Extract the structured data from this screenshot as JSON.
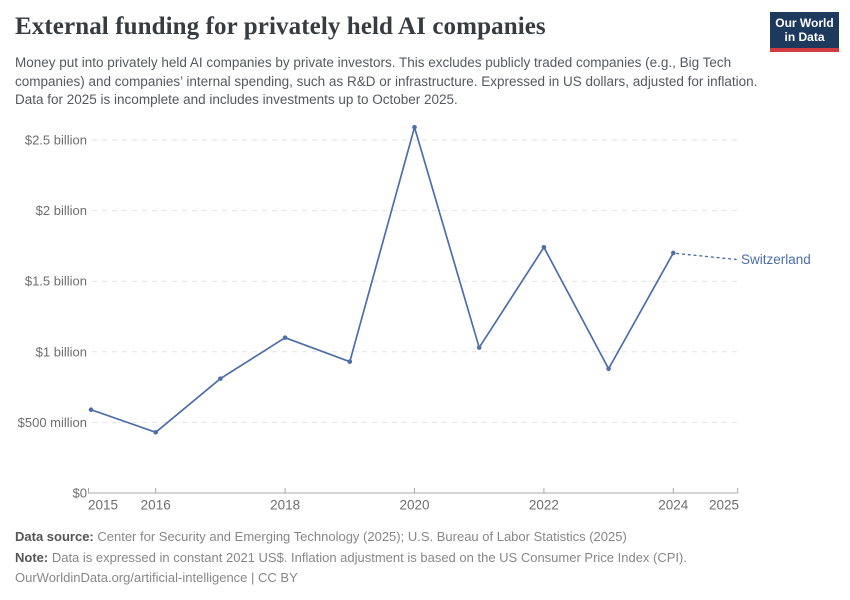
{
  "header": {
    "title": "External funding for privately held AI companies",
    "subtitle": "Money put into privately held AI companies by private investors. This excludes publicly traded companies (e.g., Big Tech companies) and companies’ internal spending, such as R&D or infrastructure. Expressed in US dollars, adjusted for inflation. Data for 2025 is incomplete and includes investments up to October 2025.",
    "logo": {
      "line1": "Our World",
      "line2": "in Data",
      "bg_color": "#1d3a5e",
      "accent_color": "#d23b3f"
    }
  },
  "chart_data": {
    "type": "line",
    "title": "External funding for privately held AI companies",
    "unit": "US dollars (constant 2021 US$), billions",
    "x": [
      2015,
      2016,
      2017,
      2018,
      2019,
      2020,
      2021,
      2022,
      2023,
      2024
    ],
    "series": [
      {
        "name": "Switzerland",
        "color": "#4c6ea9",
        "values_billion_usd": [
          0.59,
          0.43,
          0.81,
          1.1,
          0.93,
          2.59,
          1.03,
          1.74,
          0.88,
          1.7
        ]
      }
    ],
    "y_ticks": [
      {
        "value": 0,
        "label": "$0"
      },
      {
        "value": 0.5,
        "label": "$500 million"
      },
      {
        "value": 1,
        "label": "$1 billion"
      },
      {
        "value": 1.5,
        "label": "$1.5 billion"
      },
      {
        "value": 2,
        "label": "$2 billion"
      },
      {
        "value": 2.5,
        "label": "$2.5 billion"
      }
    ],
    "x_tick_years": [
      2015,
      2016,
      2018,
      2020,
      2022,
      2024,
      2025
    ],
    "x_range": [
      2015,
      2025
    ],
    "ylim": [
      0,
      2.5
    ],
    "grid": "horizontal dashed",
    "legend_position": "end-of-line label",
    "colors": {
      "grid": "#e2e2e2",
      "axis": "#a8a8a8",
      "tick_label": "#6e6e6e"
    }
  },
  "footer": {
    "source_label": "Data source:",
    "source_text": " Center for Security and Emerging Technology (2025); U.S. Bureau of Labor Statistics (2025)",
    "note_label": "Note:",
    "note_text": " Data is expressed in constant 2021 US$. Inflation adjustment is based on the US Consumer Price Index (CPI).",
    "link": "OurWorldinData.org/artificial-intelligence",
    "separator": " | ",
    "license": "CC BY"
  }
}
